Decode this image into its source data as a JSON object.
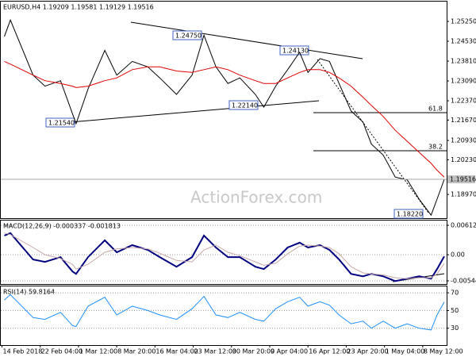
{
  "chart_data": [
    {
      "type": "line",
      "title": "EURUSD,H4 1.19209 1.19581 1.19129 1.19516",
      "watermark": "ActionForex.com",
      "last_price_label": "1.19516",
      "annotations": [
        "1.24750",
        "1.24130",
        "1.22140",
        "1.21540",
        "1.18220"
      ],
      "fib_labels": [
        "61.8",
        "38.2"
      ],
      "x": [
        3,
        8,
        27,
        37,
        50,
        60,
        63,
        73,
        87,
        97,
        110,
        123,
        133,
        147,
        160,
        170,
        180,
        190,
        200,
        213,
        220,
        230,
        240,
        250,
        257,
        267,
        275,
        283,
        293,
        303,
        310,
        320,
        330,
        340,
        350,
        360,
        365,
        371
      ],
      "xlim": [
        0,
        373
      ],
      "ylim": [
        1.1811,
        1.2597
      ],
      "yticks": [
        {
          "value": 1.2525,
          "label": "1.25250"
        },
        {
          "value": 1.2453,
          "label": "1.24530"
        },
        {
          "value": 1.2381,
          "label": "1.23810"
        },
        {
          "value": 1.2309,
          "label": "1.23090"
        },
        {
          "value": 1.2237,
          "label": "1.22370"
        },
        {
          "value": 1.2167,
          "label": "1.21670"
        },
        {
          "value": 1.2093,
          "label": "1.20930"
        },
        {
          "value": 1.2023,
          "label": "1.20230"
        },
        {
          "value": 1.1897,
          "label": "1.18970"
        }
      ],
      "grid": false,
      "series": [
        {
          "color": "#000000",
          "values": [
            1.247,
            1.253,
            1.233,
            1.229,
            1.231,
            1.219,
            1.2154,
            1.228,
            1.242,
            1.233,
            1.238,
            1.236,
            1.232,
            1.226,
            1.233,
            1.2475,
            1.236,
            1.23,
            1.232,
            1.226,
            1.2214,
            1.229,
            1.235,
            1.2413,
            1.234,
            1.239,
            1.238,
            1.23,
            1.22,
            1.216,
            1.208,
            1.204,
            1.196,
            1.195,
            1.188,
            1.1822,
            1.188,
            1.1952
          ]
        },
        {
          "color": "#e00000",
          "values": [
            1.238,
            1.237,
            1.233,
            1.231,
            1.23,
            1.229,
            1.2285,
            1.229,
            1.231,
            1.232,
            1.235,
            1.236,
            1.236,
            1.2345,
            1.234,
            1.235,
            1.236,
            1.235,
            1.233,
            1.231,
            1.23,
            1.23,
            1.232,
            1.234,
            1.235,
            1.235,
            1.234,
            1.232,
            1.229,
            1.225,
            1.222,
            1.218,
            1.213,
            1.209,
            1.205,
            1.201,
            1.1985,
            1.196
          ]
        }
      ]
    },
    {
      "type": "line",
      "title": "MACD(12,26,9) -0.000337 -0.001813",
      "x": [
        3,
        8,
        27,
        37,
        50,
        60,
        63,
        73,
        87,
        97,
        110,
        123,
        133,
        147,
        160,
        170,
        180,
        190,
        200,
        213,
        220,
        230,
        240,
        250,
        257,
        267,
        275,
        283,
        293,
        303,
        310,
        320,
        330,
        340,
        350,
        360,
        365,
        371
      ],
      "xlim": [
        0,
        373
      ],
      "ylim": [
        -0.00611,
        0.00712
      ],
      "yticks": [
        0.006129,
        {
          "value": 0,
          "label": "0.00"
        },
        -0.005446
      ],
      "grid": true,
      "series": [
        {
          "color": "#000080",
          "values": [
            0.004,
            0.0045,
            -0.001,
            -0.0015,
            -0.0005,
            -0.0035,
            -0.004,
            -0.0005,
            0.003,
            0.0005,
            0.002,
            0.001,
            -0.0005,
            -0.0025,
            -0.0005,
            0.004,
            0.0015,
            -0.0005,
            -0.0005,
            -0.0025,
            -0.003,
            -0.001,
            0.0015,
            0.0025,
            0.0015,
            0.002,
            0.001,
            -0.001,
            -0.004,
            -0.0045,
            -0.004,
            -0.0045,
            -0.0055,
            -0.005,
            -0.0045,
            -0.005,
            -0.003,
            -0.000337
          ]
        },
        {
          "color": "#c8a8a8",
          "values": [
            0.0045,
            0.0042,
            0.0015,
            0.0,
            -0.0008,
            -0.002,
            -0.003,
            -0.002,
            0.0005,
            0.0012,
            0.0015,
            0.0012,
            0.0003,
            -0.0012,
            -0.0015,
            0.001,
            0.002,
            0.0005,
            -0.0002,
            -0.0015,
            -0.0022,
            -0.0018,
            0.0002,
            0.0018,
            0.002,
            0.0018,
            0.0015,
            0.0002,
            -0.0025,
            -0.0038,
            -0.004,
            -0.0042,
            -0.0048,
            -0.005,
            -0.0048,
            -0.0048,
            -0.004,
            -0.001813
          ]
        }
      ]
    },
    {
      "type": "line",
      "title": "RSI(14) 59.8164",
      "x": [
        3,
        8,
        27,
        37,
        50,
        60,
        63,
        73,
        87,
        97,
        110,
        123,
        133,
        147,
        160,
        170,
        180,
        190,
        200,
        213,
        220,
        230,
        240,
        250,
        257,
        267,
        275,
        283,
        293,
        303,
        310,
        320,
        330,
        340,
        350,
        360,
        365,
        371
      ],
      "xlim": [
        0,
        373
      ],
      "ylim": [
        10.9,
        77.3
      ],
      "yticks": [
        70,
        50,
        30
      ],
      "grid": true,
      "xticks": [
        {
          "value": 1,
          "label": "14 Feb 2018"
        },
        {
          "value": 33,
          "label": "22 Feb 04:00"
        },
        {
          "value": 65,
          "label": "1 Mar 12:00"
        },
        {
          "value": 97,
          "label": "8 Mar 20:00"
        },
        {
          "value": 129,
          "label": "16 Mar 04:00"
        },
        {
          "value": 161,
          "label": "23 Mar 12:00"
        },
        {
          "value": 193,
          "label": "30 Mar 20:00"
        },
        {
          "value": 225,
          "label": "9 Apr 04:00"
        },
        {
          "value": 257,
          "label": "16 Apr 12:00"
        },
        {
          "value": 289,
          "label": "23 Apr 20:00"
        },
        {
          "value": 321,
          "label": "1 May 04:00"
        },
        {
          "value": 353,
          "label": "8 May 12:00"
        }
      ],
      "series": [
        {
          "color": "#1e90ff",
          "values": [
            62,
            68,
            42,
            40,
            48,
            33,
            32,
            55,
            65,
            45,
            55,
            50,
            45,
            40,
            52,
            66,
            45,
            42,
            48,
            40,
            38,
            52,
            60,
            65,
            55,
            60,
            56,
            45,
            35,
            38,
            30,
            38,
            30,
            35,
            30,
            28,
            45,
            59.8164
          ]
        }
      ]
    }
  ]
}
